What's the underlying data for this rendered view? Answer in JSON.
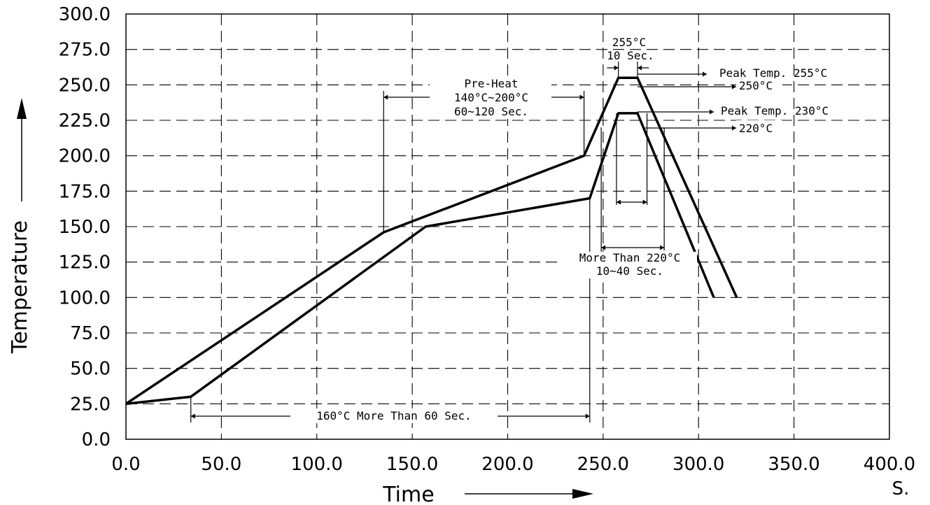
{
  "chart_data": {
    "type": "line",
    "xlabel": "Time",
    "x_unit": "S.",
    "ylabel": "Temperature",
    "xlim": [
      0,
      400
    ],
    "ylim": [
      0,
      300
    ],
    "x_ticks": [
      "0.0",
      "50.0",
      "100.0",
      "150.0",
      "200.0",
      "250.0",
      "300.0",
      "350.0",
      "400.0"
    ],
    "y_ticks": [
      "0.0",
      "25.0",
      "50.0",
      "75.0",
      "100.0",
      "125.0",
      "150.0",
      "175.0",
      "200.0",
      "225.0",
      "250.0",
      "275.0",
      "300.0"
    ],
    "grid": true,
    "series": [
      {
        "x": [
          0,
          135,
          240,
          258,
          268,
          320
        ],
        "y": [
          25,
          146,
          200,
          255,
          255,
          100
        ]
      },
      {
        "x": [
          0,
          34,
          157,
          243,
          258,
          268,
          308
        ],
        "y": [
          25,
          30,
          150,
          170,
          230,
          230,
          100
        ]
      }
    ],
    "annotations": {
      "peak_top": [
        "255°C",
        "10  Sec."
      ],
      "preheat": [
        "Pre-Heat",
        "140°C~200°C",
        "60~120  Sec."
      ],
      "peak_255": "Peak  Temp.  255°C",
      "t250": "250°C",
      "peak_230": "Peak  Temp.  230°C",
      "t220": "220°C",
      "more_than_220": [
        "More  Than  220°C",
        "10~40  Sec."
      ],
      "t160": "160°C  More  Than  60  Sec."
    }
  }
}
